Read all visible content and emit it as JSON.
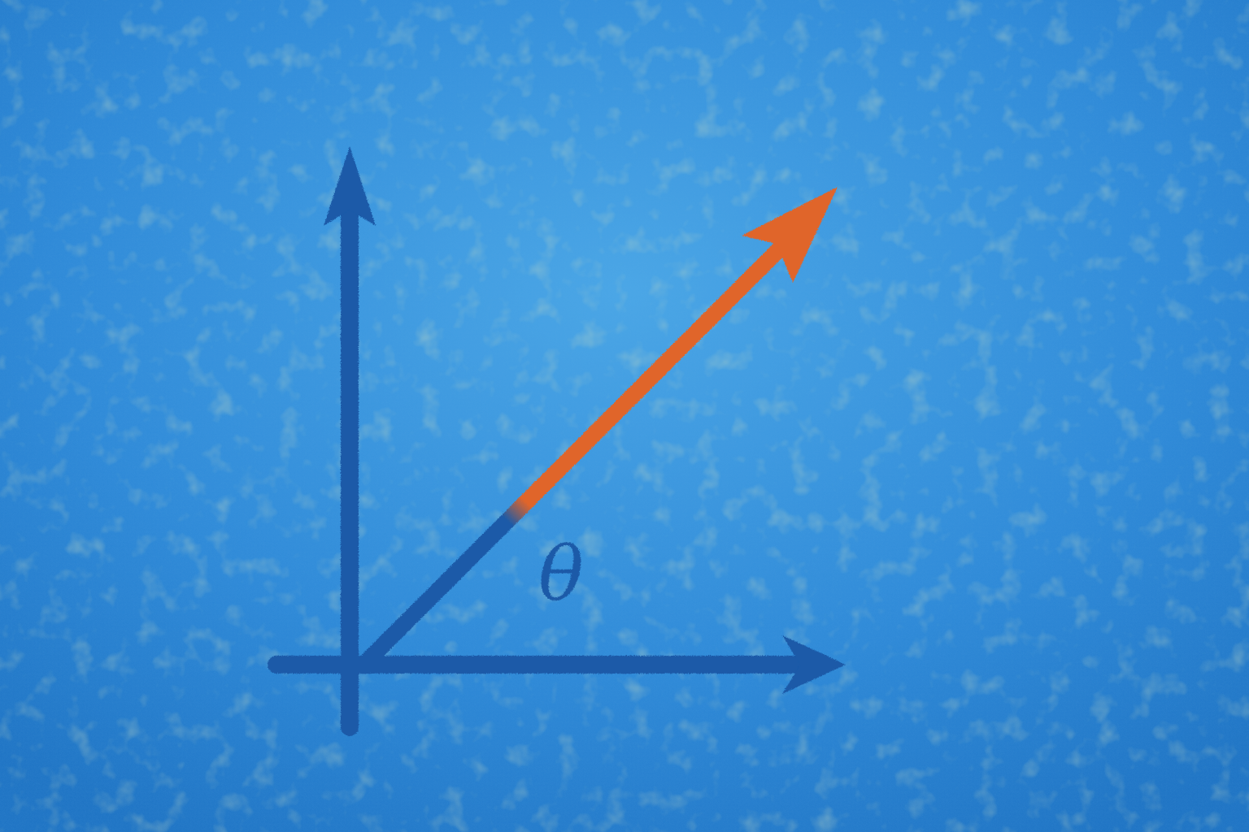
{
  "diagram": {
    "angle_label": "θ",
    "colors": {
      "background": "#2a86d4",
      "background_light": "#4aa6e6",
      "speckle": "#8fb48a",
      "axes": "#1a5aa8",
      "vector": "#e0652a",
      "label": "#1a5aa8"
    },
    "elements": {
      "axes": [
        "x-axis",
        "y-axis"
      ],
      "vector": "angled-vector",
      "angle_marker": "theta-label"
    }
  }
}
